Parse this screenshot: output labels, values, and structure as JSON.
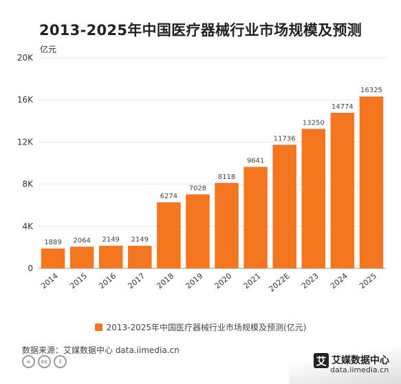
{
  "chart_data": {
    "type": "bar",
    "title": "2013-2025年中国医疗器械行业市场规模及预测",
    "unit_label": "亿元",
    "categories": [
      "2014",
      "2015",
      "2016",
      "2017",
      "2018",
      "2019",
      "2020",
      "2021",
      "2022E",
      "2023",
      "2024",
      "2025"
    ],
    "values": [
      1889,
      2064,
      2149,
      2149,
      6274,
      7028,
      8118,
      9641,
      11736,
      13250,
      14774,
      16325
    ],
    "ylim": [
      0,
      20000
    ],
    "yticks": [
      0,
      4000,
      8000,
      12000,
      16000,
      20000
    ],
    "ytick_labels": [
      "0",
      "4K",
      "8K",
      "12K",
      "16K",
      "20K"
    ],
    "grid": true,
    "legend_position": "bottom",
    "series": [
      {
        "name": "2013-2025年中国医疗器械行业市场规模及预测(亿元)"
      }
    ],
    "bar_color": "#F47621"
  },
  "source": "数据来源：艾媒数据中心 data.iimedia.cn",
  "brand": {
    "logo_char": "艾",
    "name": "艾媒数据中心",
    "url": "data.iimedia.cn"
  },
  "license_icons": [
    "=",
    "cc",
    "i"
  ]
}
